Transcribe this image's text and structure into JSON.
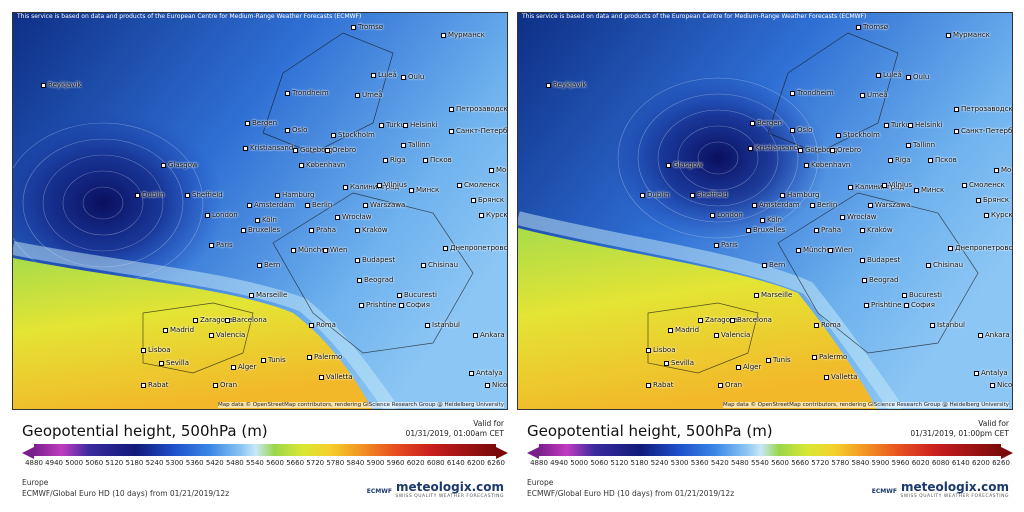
{
  "header_notice": "This service is based on data and products of the European Centre for Medium-Range Weather Forecasts (ECMWF)",
  "attribution": "Map data © OpenStreetMap contributors, rendering GIScience Research Group @ Heidelberg University",
  "title": "Geopotential height, 500hPa (m)",
  "valid_label": "Valid for",
  "region": "Europe",
  "logo": "meteologix.com",
  "logo_tagline": "SWISS QUALITY WEATHER FORECASTING",
  "provider": "ECMWF",
  "colorbar_ticks": [
    4880,
    4940,
    5000,
    5060,
    5120,
    5180,
    5240,
    5300,
    5360,
    5420,
    5480,
    5540,
    5600,
    5660,
    5720,
    5780,
    5840,
    5900,
    5960,
    6020,
    6080,
    6140,
    6200,
    6260
  ],
  "cities": [
    "Reykjavík",
    "Tromsø",
    "Мурманск",
    "Luleå",
    "Oulu",
    "Trondheim",
    "Umeå",
    "Bergen",
    "Oslo",
    "Stockholm",
    "Turku",
    "Helsinki",
    "Петрозаводск",
    "Санкт-Петербург",
    "Kristiansand",
    "Göteborg",
    "Orebro",
    "Tallinn",
    "Glasgow",
    "Riga",
    "Псков",
    "København",
    "Москва",
    "Dublin",
    "Sheffield",
    "Hamburg",
    "Калининград",
    "Vilnius",
    "Минск",
    "Смоленск",
    "London",
    "Amsterdam",
    "Berlin",
    "Warszawa",
    "Брянск",
    "Köln",
    "Wrocław",
    "Курск",
    "Bruxelles",
    "Praha",
    "Kraków",
    "Paris",
    "München",
    "Wien",
    "Днепропетровск",
    "Budapest",
    "Chisinau",
    "Bern",
    "Beograd",
    "Marseille",
    "Bucuresti",
    "Zaragoza",
    "Barcelona",
    "Madrid",
    "Valencia",
    "Roma",
    "Prishtine",
    "София",
    "Istanbul",
    "Ankara",
    "Lisboa",
    "Sevilla",
    "Palermo",
    "Alger",
    "Tunis",
    "Valletta",
    "Antalya",
    "Rabat",
    "Oran",
    "Nicosia"
  ],
  "panels": [
    {
      "valid_time": "01/31/2019, 01:00am CET",
      "source": "ECMWF/Global Euro HD (10 days) from 01/21/2019/12z"
    },
    {
      "valid_time": "01/31/2019, 01:00pm CET",
      "source": "ECMWF/Global Euro HD (10 days) from 01/21/2019/12z"
    }
  ]
}
